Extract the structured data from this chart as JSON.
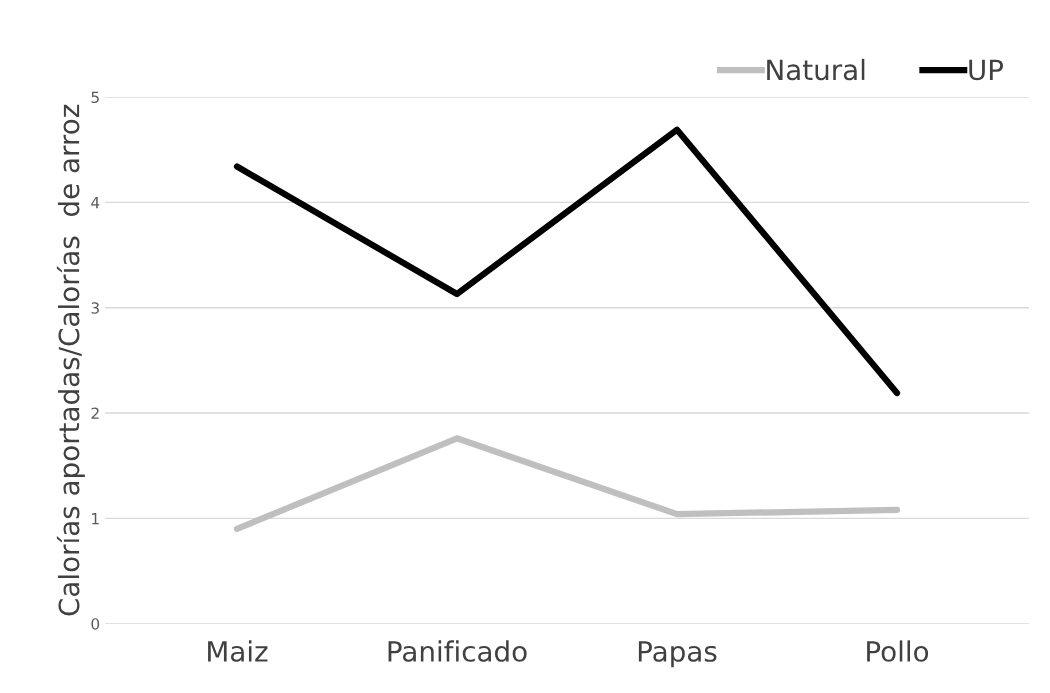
{
  "chart_data": {
    "type": "line",
    "ylabel": "Calorías aportadas/Calorías  de arroz",
    "categories": [
      "Maiz",
      "Panificado",
      "Papas",
      "Pollo"
    ],
    "series": [
      {
        "name": "Natural",
        "color": "#bfbfbf",
        "values": [
          0.9,
          1.76,
          1.04,
          1.08
        ]
      },
      {
        "name": "UP",
        "color": "#000000",
        "values": [
          4.34,
          3.13,
          4.69,
          2.19
        ]
      }
    ],
    "ylim": [
      0,
      5
    ],
    "yticks": [
      0,
      1,
      2,
      3,
      4,
      5
    ],
    "grid": "y",
    "legend": "top right",
    "marker": "none",
    "line_style": "solid"
  }
}
